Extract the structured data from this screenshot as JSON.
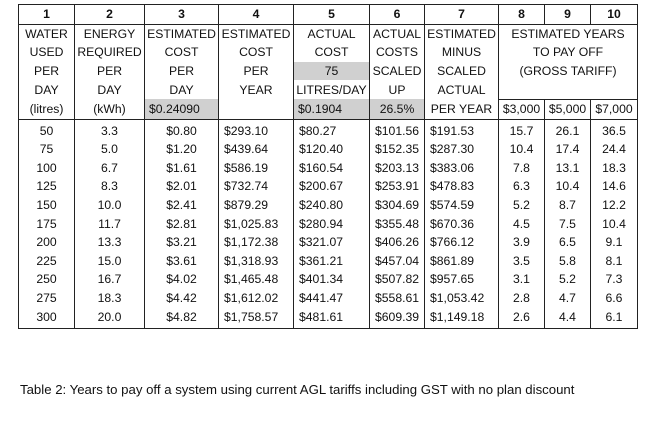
{
  "column_numbers": [
    "1",
    "2",
    "3",
    "4",
    "5",
    "6",
    "7",
    "8",
    "9",
    "10"
  ],
  "headers": {
    "c1": [
      "WATER",
      "USED",
      "PER",
      "DAY",
      "(litres)"
    ],
    "c2": [
      "ENERGY",
      "REQUIRED",
      "PER",
      "DAY",
      "(kWh)"
    ],
    "c3": [
      "ESTIMATED",
      "COST",
      "PER",
      "DAY",
      "$0.24090"
    ],
    "c4": [
      "ESTIMATED",
      "COST",
      "PER",
      "YEAR"
    ],
    "c5": [
      "ACTUAL",
      "COST",
      "75",
      "LITRES/DAY",
      "$0.1904"
    ],
    "c6": [
      "ACTUAL",
      "COSTS",
      "SCALED",
      "UP",
      "26.5%"
    ],
    "c7": [
      "ESTIMATED",
      "MINUS",
      "SCALED",
      "ACTUAL",
      "PER YEAR"
    ],
    "c8_10": [
      "ESTIMATED YEARS",
      "TO PAY OFF",
      "(GROSS TARIFF)"
    ],
    "c8": "$3,000",
    "c9": "$5,000",
    "c10": "$7,000"
  },
  "rows": [
    [
      "50",
      "3.3",
      "$0.80",
      "$293.10",
      "$80.27",
      "$101.56",
      "$191.53",
      "15.7",
      "26.1",
      "36.5"
    ],
    [
      "75",
      "5.0",
      "$1.20",
      "$439.64",
      "$120.40",
      "$152.35",
      "$287.30",
      "10.4",
      "17.4",
      "24.4"
    ],
    [
      "100",
      "6.7",
      "$1.61",
      "$586.19",
      "$160.54",
      "$203.13",
      "$383.06",
      "7.8",
      "13.1",
      "18.3"
    ],
    [
      "125",
      "8.3",
      "$2.01",
      "$732.74",
      "$200.67",
      "$253.91",
      "$478.83",
      "6.3",
      "10.4",
      "14.6"
    ],
    [
      "150",
      "10.0",
      "$2.41",
      "$879.29",
      "$240.80",
      "$304.69",
      "$574.59",
      "5.2",
      "8.7",
      "12.2"
    ],
    [
      "175",
      "11.7",
      "$2.81",
      "$1,025.83",
      "$280.94",
      "$355.48",
      "$670.36",
      "4.5",
      "7.5",
      "10.4"
    ],
    [
      "200",
      "13.3",
      "$3.21",
      "$1,172.38",
      "$321.07",
      "$406.26",
      "$766.12",
      "3.9",
      "6.5",
      "9.1"
    ],
    [
      "225",
      "15.0",
      "$3.61",
      "$1,318.93",
      "$361.21",
      "$457.04",
      "$861.89",
      "3.5",
      "5.8",
      "8.1"
    ],
    [
      "250",
      "16.7",
      "$4.02",
      "$1,465.48",
      "$401.34",
      "$507.82",
      "$957.65",
      "3.1",
      "5.2",
      "7.3"
    ],
    [
      "275",
      "18.3",
      "$4.42",
      "$1,612.02",
      "$441.47",
      "$558.61",
      "$1,053.42",
      "2.8",
      "4.7",
      "6.6"
    ],
    [
      "300",
      "20.0",
      "$4.82",
      "$1,758.57",
      "$481.61",
      "$609.39",
      "$1,149.18",
      "2.6",
      "4.4",
      "6.1"
    ]
  ],
  "caption": "Table 2: Years to pay off a system using current AGL tariffs including GST with no plan discount"
}
